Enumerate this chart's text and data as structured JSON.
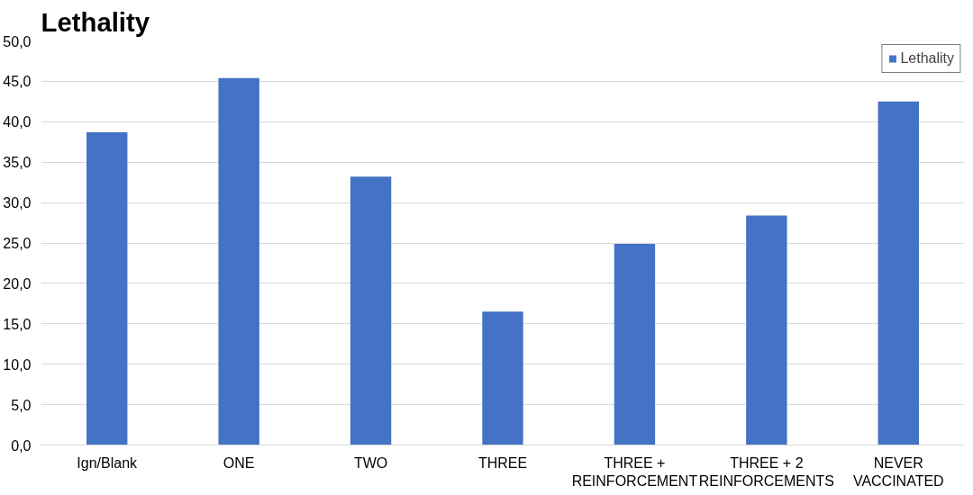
{
  "chart_data": {
    "type": "bar",
    "title": "Lethality",
    "categories": [
      "Ign/Blank",
      "ONE",
      "TWO",
      "THREE",
      "THREE + REINFORCEMENT",
      "THREE + 2 REINFORCEMENTS",
      "NEVER VACCINATED"
    ],
    "series": [
      {
        "name": "Lethality",
        "color": "#4472c4",
        "values": [
          38.7,
          45.4,
          33.2,
          16.5,
          24.9,
          28.4,
          42.5
        ]
      }
    ],
    "ylim": [
      0,
      50
    ],
    "yticks": [
      {
        "value": 0,
        "label": "0,0"
      },
      {
        "value": 5,
        "label": "5,0"
      },
      {
        "value": 10,
        "label": "10,0"
      },
      {
        "value": 15,
        "label": "15,0"
      },
      {
        "value": 20,
        "label": "20,0"
      },
      {
        "value": 25,
        "label": "25,0"
      },
      {
        "value": 30,
        "label": "30,0"
      },
      {
        "value": 35,
        "label": "35,0"
      },
      {
        "value": 40,
        "label": "40,0"
      },
      {
        "value": 45,
        "label": "45,0"
      },
      {
        "value": 50,
        "label": "50,0"
      }
    ],
    "grid": "y",
    "legend": "top right"
  }
}
